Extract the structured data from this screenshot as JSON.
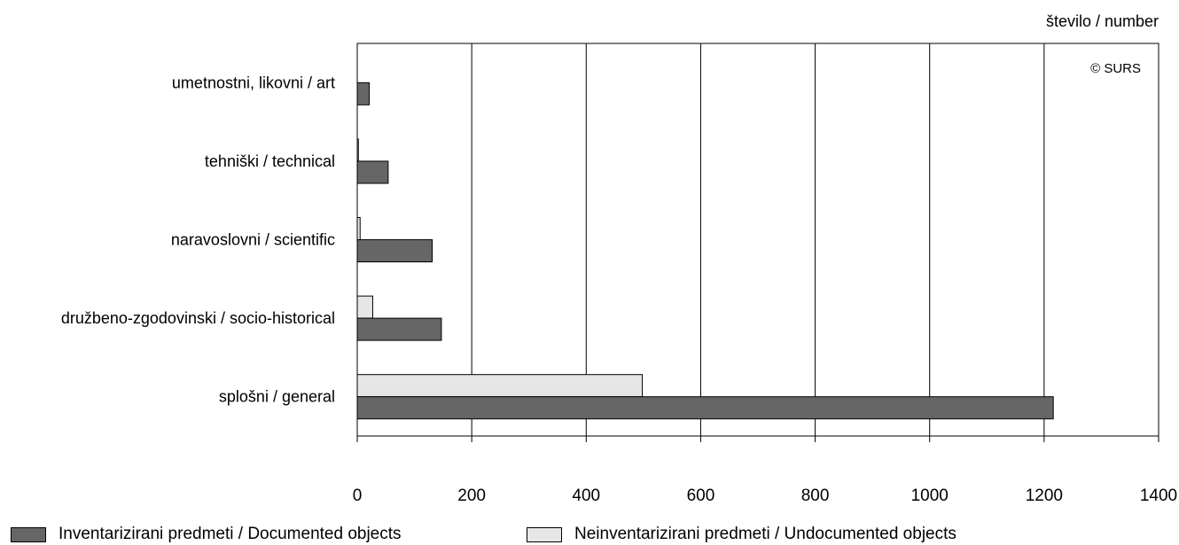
{
  "chart_data": {
    "type": "bar",
    "orientation": "horizontal",
    "unit_label": "število / number",
    "copyright": "© SURS",
    "categories": [
      "umetnostni, likovni / art",
      "tehniški / technical",
      "naravoslovni / scientific",
      "družbeno-zgodovinski / socio-historical",
      "splošni / general"
    ],
    "series": [
      {
        "name": "Neinventarizirani predmeti / Undocumented objects",
        "values": [
          0,
          2,
          5,
          27,
          498
        ],
        "color": "#e6e6e6"
      },
      {
        "name": "Inventarizirani predmeti / Documented objects",
        "values": [
          21,
          54,
          131,
          147,
          1216
        ],
        "color": "#666666"
      }
    ],
    "xlim": [
      0,
      1400
    ],
    "xticks": [
      "0",
      "200",
      "400",
      "600",
      "800",
      "1000",
      "1200",
      "1400"
    ],
    "grid": "vertical",
    "legend_position": "bottom",
    "legend": [
      {
        "label": "Inventarizirani predmeti / Documented objects",
        "color": "#666666"
      },
      {
        "label": "Neinventarizirani predmeti / Undocumented objects",
        "color": "#e6e6e6"
      }
    ]
  }
}
